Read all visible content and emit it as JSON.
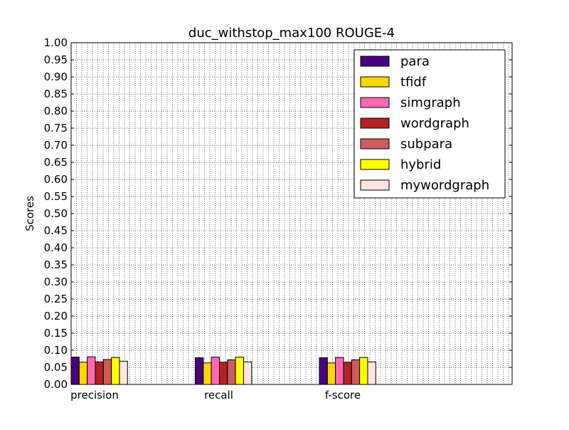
{
  "chart_data": {
    "type": "bar",
    "title": "duc_withstop_max100 ROUGE-4",
    "xlabel": "",
    "ylabel": "Scores",
    "ylim": [
      0,
      1.0
    ],
    "yticks": [
      "0.00",
      "0.05",
      "0.10",
      "0.15",
      "0.20",
      "0.25",
      "0.30",
      "0.35",
      "0.40",
      "0.45",
      "0.50",
      "0.55",
      "0.60",
      "0.65",
      "0.70",
      "0.75",
      "0.80",
      "0.85",
      "0.90",
      "0.95",
      "1.00"
    ],
    "categories": [
      "precision",
      "recall",
      "f-score"
    ],
    "grid": true,
    "legend_position": "top-right",
    "series": [
      {
        "name": "para",
        "color": "#4b0082",
        "values": [
          0.08,
          0.078,
          0.078
        ]
      },
      {
        "name": "tfidf",
        "color": "#ffd700",
        "values": [
          0.065,
          0.063,
          0.063
        ]
      },
      {
        "name": "simgraph",
        "color": "#ff69b4",
        "values": [
          0.081,
          0.08,
          0.079
        ]
      },
      {
        "name": "wordgraph",
        "color": "#b22222",
        "values": [
          0.066,
          0.065,
          0.065
        ]
      },
      {
        "name": "subpara",
        "color": "#cd5c5c",
        "values": [
          0.073,
          0.072,
          0.072
        ]
      },
      {
        "name": "hybrid",
        "color": "#ffff00",
        "values": [
          0.079,
          0.08,
          0.079
        ]
      },
      {
        "name": "mywordgraph",
        "color": "#ffe4e1",
        "values": [
          0.068,
          0.066,
          0.066
        ]
      }
    ]
  }
}
